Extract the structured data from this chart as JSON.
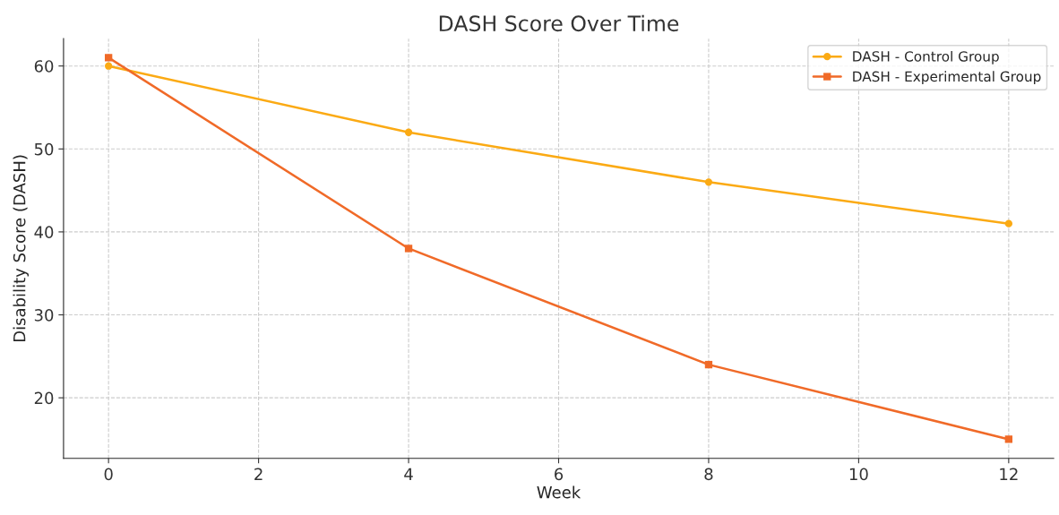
{
  "chart_data": {
    "type": "line",
    "title": "DASH Score Over Time",
    "xlabel": "Week",
    "ylabel": "Disability Score (DASH)",
    "x": [
      0,
      4,
      8,
      12
    ],
    "series": [
      {
        "name": "DASH - Control Group",
        "color": "#fbaa14",
        "values": [
          60,
          52,
          46,
          41
        ],
        "marker": "circle"
      },
      {
        "name": "DASH - Experimental Group",
        "color": "#f06a28",
        "values": [
          61,
          38,
          24,
          15
        ],
        "marker": "square"
      }
    ],
    "xlim": [
      -0.6,
      12.6
    ],
    "ylim": [
      12.7,
      63.3
    ],
    "xticks": [
      0,
      2,
      4,
      6,
      8,
      10,
      12
    ],
    "yticks": [
      20,
      30,
      40,
      50,
      60
    ],
    "grid": true,
    "legend": "top right",
    "line_style": "solid"
  }
}
